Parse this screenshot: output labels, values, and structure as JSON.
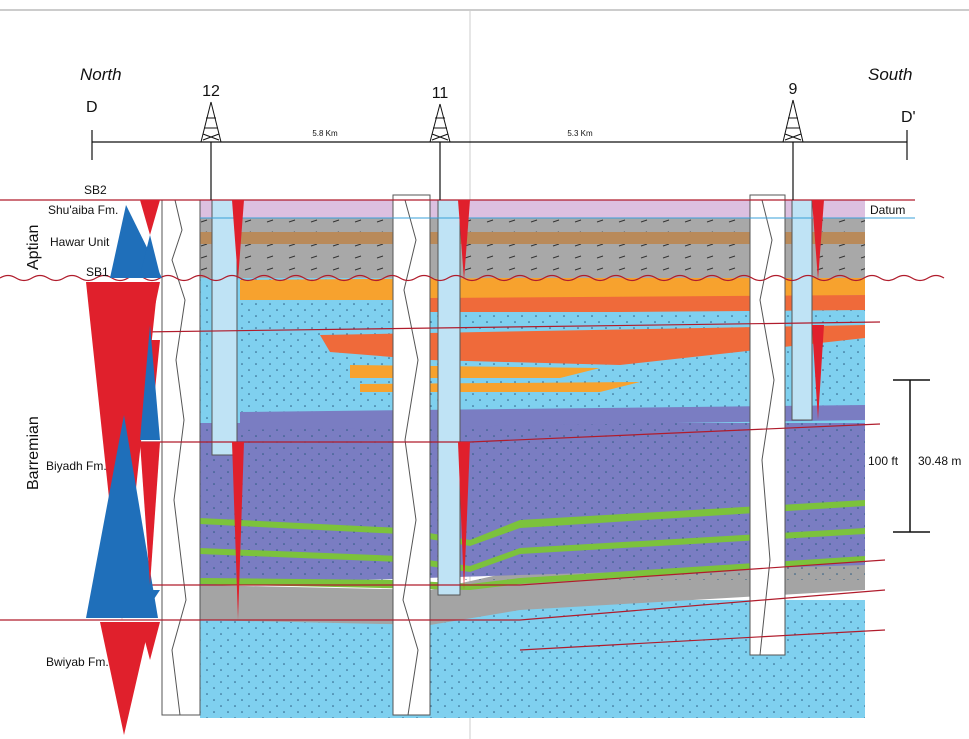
{
  "header": {
    "left_direction": "North",
    "right_direction": "South",
    "left_end": "D",
    "right_end": "D'"
  },
  "wells": [
    {
      "label": "12"
    },
    {
      "label": "11"
    },
    {
      "label": "9"
    }
  ],
  "distances": [
    "5.8 Km",
    "5.3 Km"
  ],
  "left_labels": {
    "sb2": "SB2",
    "shuaiba": "Shu'aiba Fm.",
    "hawar": "Hawar Unit",
    "sb1": "SB1",
    "aptian": "Aptian",
    "barremian": "Barremian",
    "biyadh": "Biyadh Fm.",
    "bwiyab": "Bwiyab Fm."
  },
  "datum": "Datum",
  "scale": {
    "feet": "100 ft",
    "meters": "30.48 m"
  }
}
